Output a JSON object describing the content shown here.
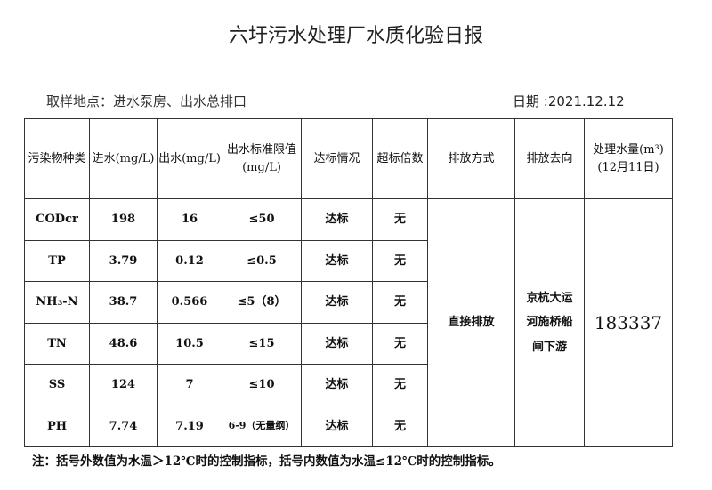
{
  "title": "六圩污水处理厂水质化验日报",
  "location": "取样地点：进水泵房、出水总排口",
  "date": "日期 :2021.12.12",
  "headers": [
    "污染物种类",
    "进水(mg/L)",
    "出水(mg/L)",
    "出水标准限值(mg/L)",
    "达标情况",
    "超标倍数",
    "排放方式",
    "排放去向",
    "处理水量(m³)(12月11日)"
  ],
  "rows": [
    {
      "name": "CODcr",
      "in": "198",
      "out": "16",
      "limit": "≤50",
      "status": "达标",
      "exceed": "无"
    },
    {
      "name": "TP",
      "in": "3.79",
      "out": "0.12",
      "limit": "≤0.5",
      "status": "达标",
      "exceed": "无"
    },
    {
      "name": "NH₃-N",
      "in": "38.7",
      "out": "0.566",
      "limit": "≤5（8）",
      "status": "达标",
      "exceed": "无"
    },
    {
      "name": "TN",
      "in": "48.6",
      "out": "10.5",
      "limit": "≤15",
      "status": "达标",
      "exceed": "无"
    },
    {
      "name": "SS",
      "in": "124",
      "out": "7",
      "limit": "≤10",
      "status": "达标",
      "exceed": "无"
    },
    {
      "name": "PH",
      "in": "7.74",
      "out": "7.19",
      "limit": "6-9（无量纲）",
      "status": "达标",
      "exceed": "无"
    }
  ],
  "discharge_method": "直接排放",
  "discharge_dest": "京杭大运河施桥船闸下游",
  "volume": "183337",
  "note": "注：括号外数值为水温＞12℃时的控制指标，括号内数值为水温≤12℃时的控制指标。"
}
